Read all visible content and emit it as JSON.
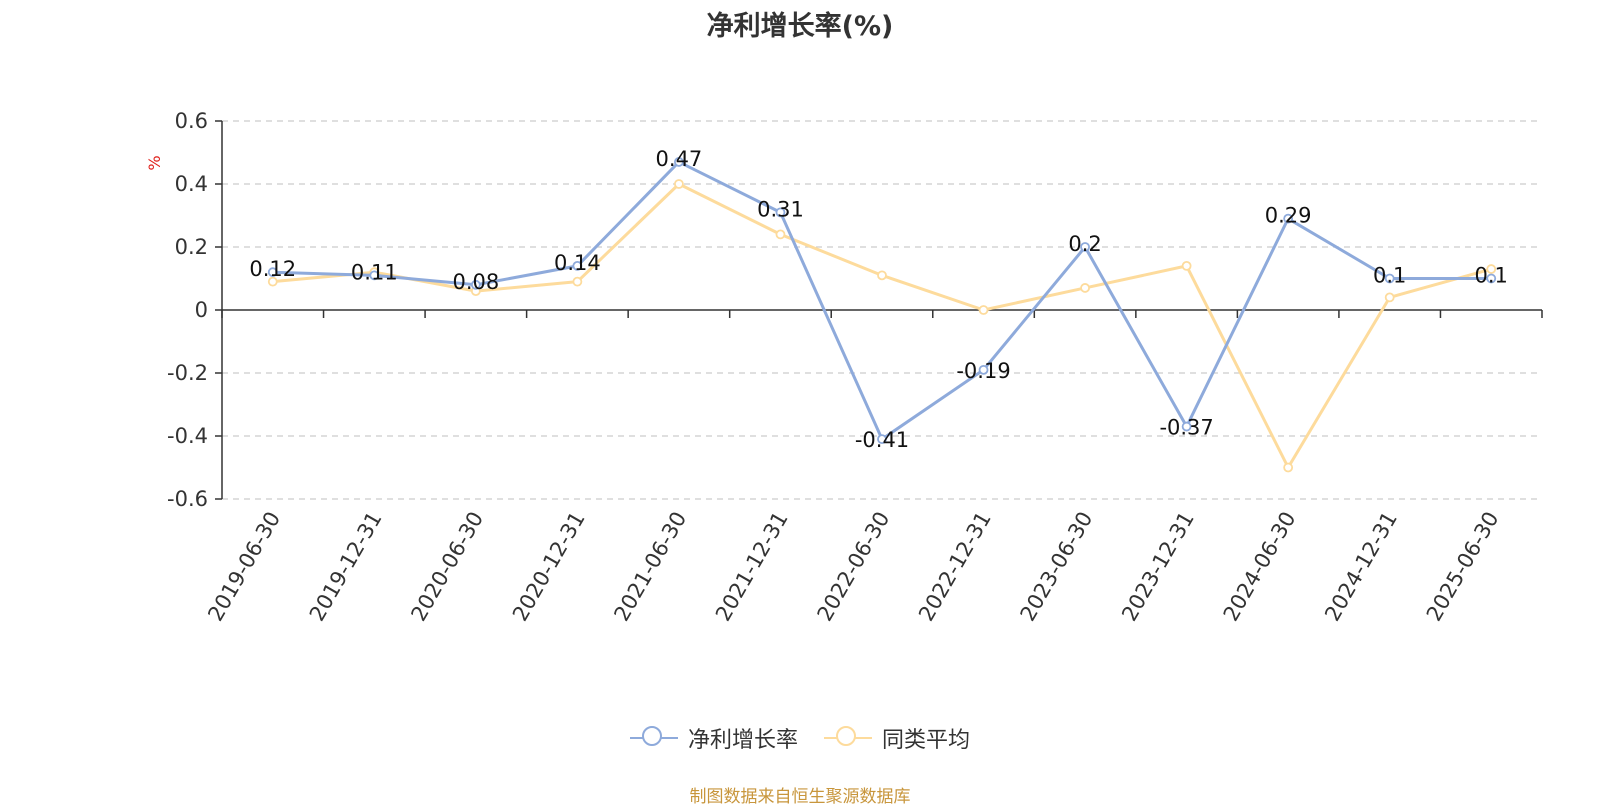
{
  "chart_data": {
    "type": "line",
    "title": "净利增长率(%)",
    "ylabel": "%",
    "ylim": [
      -0.6,
      0.6
    ],
    "yticks": [
      0.6,
      0.4,
      0.2,
      0,
      -0.2,
      -0.4,
      -0.6
    ],
    "grid": true,
    "legend_position": "bottom",
    "categories": [
      "2019-06-30",
      "2019-12-31",
      "2020-06-30",
      "2020-12-31",
      "2021-06-30",
      "2021-12-31",
      "2022-06-30",
      "2022-12-31",
      "2023-06-30",
      "2023-12-31",
      "2024-06-30",
      "2024-12-31",
      "2025-06-30"
    ],
    "series": [
      {
        "name": "净利增长率",
        "color": "#8eaadb",
        "values": [
          0.12,
          0.11,
          0.08,
          0.14,
          0.47,
          0.31,
          -0.41,
          -0.19,
          0.2,
          -0.37,
          0.29,
          0.1,
          0.1
        ],
        "labels": [
          "0.12",
          "0.11",
          "0.08",
          "0.14",
          "0.47",
          "0.31",
          "-0.41",
          "-0.19",
          "0.2",
          "-0.37",
          "0.29",
          "0.1",
          "0.1"
        ]
      },
      {
        "name": "同类平均",
        "color": "#fddb9c",
        "values": [
          0.09,
          0.12,
          0.06,
          0.09,
          0.4,
          0.24,
          0.11,
          0.0,
          0.07,
          0.14,
          -0.5,
          0.04,
          0.13
        ]
      }
    ]
  },
  "source_text": "制图数据来自恒生聚源数据库"
}
